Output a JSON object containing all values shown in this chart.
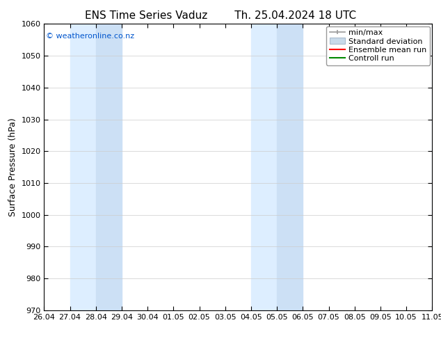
{
  "title_left": "ENS Time Series Vaduz",
  "title_right": "Th. 25.04.2024 18 UTC",
  "ylabel": "Surface Pressure (hPa)",
  "ylim": [
    970,
    1060
  ],
  "yticks": [
    970,
    980,
    990,
    1000,
    1010,
    1020,
    1030,
    1040,
    1050,
    1060
  ],
  "xlim": [
    0,
    15
  ],
  "xtick_labels": [
    "26.04",
    "27.04",
    "28.04",
    "29.04",
    "30.04",
    "01.05",
    "02.05",
    "03.05",
    "04.05",
    "05.05",
    "06.05",
    "07.05",
    "08.05",
    "09.05",
    "10.05",
    "11.05"
  ],
  "xtick_positions": [
    0,
    1,
    2,
    3,
    4,
    5,
    6,
    7,
    8,
    9,
    10,
    11,
    12,
    13,
    14,
    15
  ],
  "background_color": "#ffffff",
  "plot_bg_color": "#ffffff",
  "shaded_bands": [
    {
      "xmin": 1,
      "xmax": 2,
      "color": "#ddeeff"
    },
    {
      "xmin": 2,
      "xmax": 3,
      "color": "#cce0f5"
    },
    {
      "xmin": 8,
      "xmax": 9,
      "color": "#ddeeff"
    },
    {
      "xmin": 9,
      "xmax": 10,
      "color": "#cce0f5"
    },
    {
      "xmin": 15,
      "xmax": 15.5,
      "color": "#ddeeff"
    }
  ],
  "copyright_text": "© weatheronline.co.nz",
  "copyright_color": "#0055cc",
  "legend_entries": [
    {
      "label": "min/max"
    },
    {
      "label": "Standard deviation"
    },
    {
      "label": "Ensemble mean run"
    },
    {
      "label": "Controll run"
    }
  ],
  "minmax_color": "#999999",
  "std_face_color": "#c8daea",
  "std_edge_color": "#aabbcc",
  "ens_color": "#ff0000",
  "ctrl_color": "#008800",
  "grid_color": "#cccccc",
  "tick_color": "#000000",
  "spine_color": "#000000",
  "title_fontsize": 11,
  "label_fontsize": 9,
  "tick_fontsize": 8,
  "legend_fontsize": 8
}
